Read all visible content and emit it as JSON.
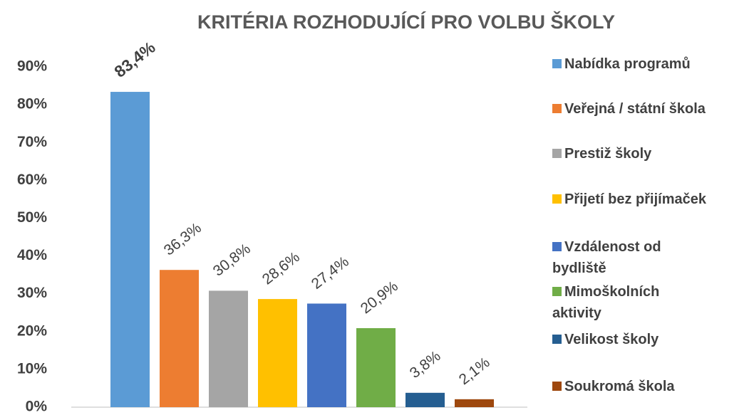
{
  "chart_data": {
    "type": "bar",
    "title": "KRITÉRIA ROZHODUJÍCÍ PRO VOLBU ŠKOLY",
    "categories": [
      "Nabídka programů",
      "Veřejná / státní škola",
      "Prestiž školy",
      "Přijetí bez přijímaček",
      "Vzdálenost od bydliště",
      "Mimoškolních aktivity",
      "Velikost školy",
      "Soukromá škola"
    ],
    "values": [
      83.4,
      36.3,
      30.8,
      28.6,
      27.4,
      20.9,
      3.8,
      2.1
    ],
    "value_labels": [
      "83,4%",
      "36,3%",
      "30,8%",
      "28,6%",
      "27,4%",
      "20,9%",
      "3,8%",
      "2,1%"
    ],
    "colors": [
      "#5b9bd5",
      "#ed7d31",
      "#a5a5a5",
      "#ffc000",
      "#4472c4",
      "#70ad47",
      "#255e91",
      "#9e480e"
    ],
    "ylim": [
      0,
      90
    ],
    "yticks": [
      {
        "value": 0,
        "label": "0%"
      },
      {
        "value": 10,
        "label": "10%"
      },
      {
        "value": 20,
        "label": "20%"
      },
      {
        "value": 30,
        "label": "30%"
      },
      {
        "value": 40,
        "label": "40%"
      },
      {
        "value": 50,
        "label": "50%"
      },
      {
        "value": 60,
        "label": "60%"
      },
      {
        "value": 70,
        "label": "70%"
      },
      {
        "value": 80,
        "label": "80%"
      },
      {
        "value": 90,
        "label": "90%"
      }
    ],
    "grid": false,
    "legend": "right"
  }
}
